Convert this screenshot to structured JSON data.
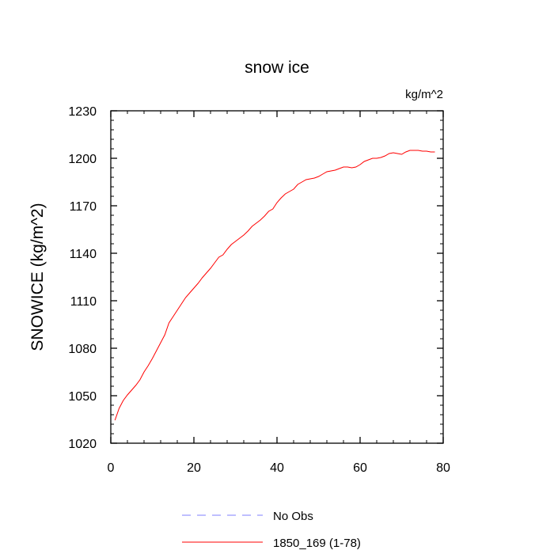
{
  "chart_data": {
    "type": "line",
    "title": "snow ice",
    "units_label": "kg/m^2",
    "ylabel": "SNOWICE  (kg/m^2)",
    "xlabel": "",
    "xlim": [
      0,
      80
    ],
    "ylim": [
      1020,
      1230
    ],
    "xticks": [
      0,
      20,
      40,
      60,
      80
    ],
    "yticks": [
      1020,
      1050,
      1080,
      1110,
      1140,
      1170,
      1200,
      1230
    ],
    "x_minor_step": 4,
    "y_minor_step": 6,
    "grid": false,
    "legend_position": "bottom",
    "series": [
      {
        "name": "1850_169 (1-78)",
        "color": "#ff0000",
        "style": "solid",
        "x": [
          1,
          2,
          3,
          4,
          5,
          6,
          7,
          8,
          9,
          10,
          11,
          12,
          13,
          14,
          15,
          16,
          17,
          18,
          19,
          20,
          21,
          22,
          23,
          24,
          25,
          26,
          27,
          28,
          29,
          30,
          31,
          32,
          33,
          34,
          35,
          36,
          37,
          38,
          39,
          40,
          41,
          42,
          43,
          44,
          45,
          46,
          47,
          48,
          49,
          50,
          51,
          52,
          53,
          54,
          55,
          56,
          57,
          58,
          59,
          60,
          61,
          62,
          63,
          64,
          65,
          66,
          67,
          68,
          69,
          70,
          71,
          72,
          73,
          74,
          75,
          76,
          77,
          78
        ],
        "values": [
          1034.5,
          1042,
          1047,
          1050.5,
          1053.5,
          1056.5,
          1060,
          1065,
          1069,
          1073.5,
          1078.5,
          1083.5,
          1088.5,
          1096,
          1100,
          1104,
          1108,
          1112,
          1115,
          1118,
          1121,
          1124.5,
          1127.5,
          1130.5,
          1134,
          1137.5,
          1139,
          1142.5,
          1145.5,
          1147.5,
          1149.5,
          1151.5,
          1154,
          1157,
          1159,
          1161,
          1163.5,
          1166.5,
          1168,
          1172,
          1175,
          1177.5,
          1179,
          1180.5,
          1183.5,
          1185,
          1186.5,
          1187,
          1187.5,
          1188.5,
          1190,
          1191.5,
          1192,
          1192.5,
          1193.5,
          1194.5,
          1194.5,
          1194,
          1194.5,
          1196,
          1198,
          1199,
          1200,
          1200,
          1200.5,
          1201.5,
          1203,
          1203.5,
          1203,
          1202.5,
          1204,
          1205,
          1205,
          1205,
          1204.5,
          1204.5,
          1204,
          1204
        ]
      },
      {
        "name": "No Obs",
        "color": "#7f7fff",
        "style": "dashed",
        "x": [],
        "values": []
      }
    ]
  }
}
